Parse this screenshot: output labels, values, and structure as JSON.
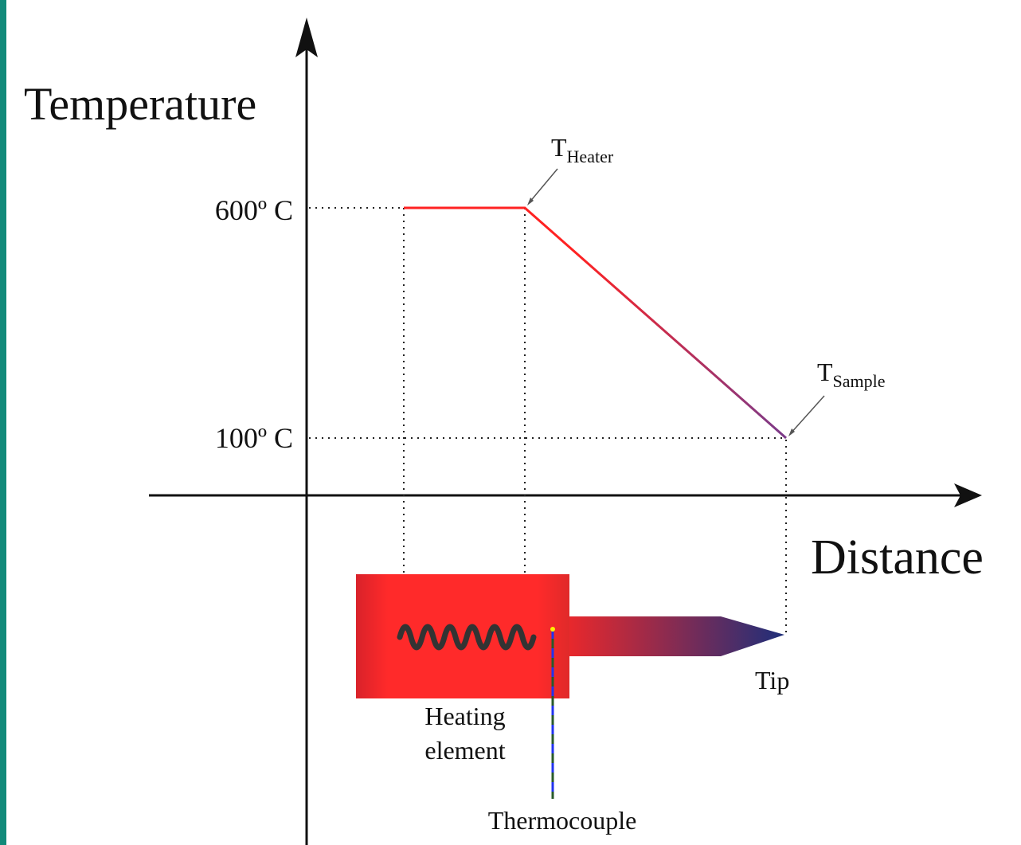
{
  "axes": {
    "y_label": "Temperature",
    "x_label": "Distance"
  },
  "levels": {
    "high": "600º C",
    "low": "100º C"
  },
  "annotations": {
    "heater": {
      "symbol": "T",
      "subscript": "Heater"
    },
    "sample": {
      "symbol": "T",
      "subscript": "Sample"
    }
  },
  "parts": {
    "tip": "Tip",
    "heating_element": [
      "Heating",
      "element"
    ],
    "thermocouple": "Thermocouple"
  }
}
